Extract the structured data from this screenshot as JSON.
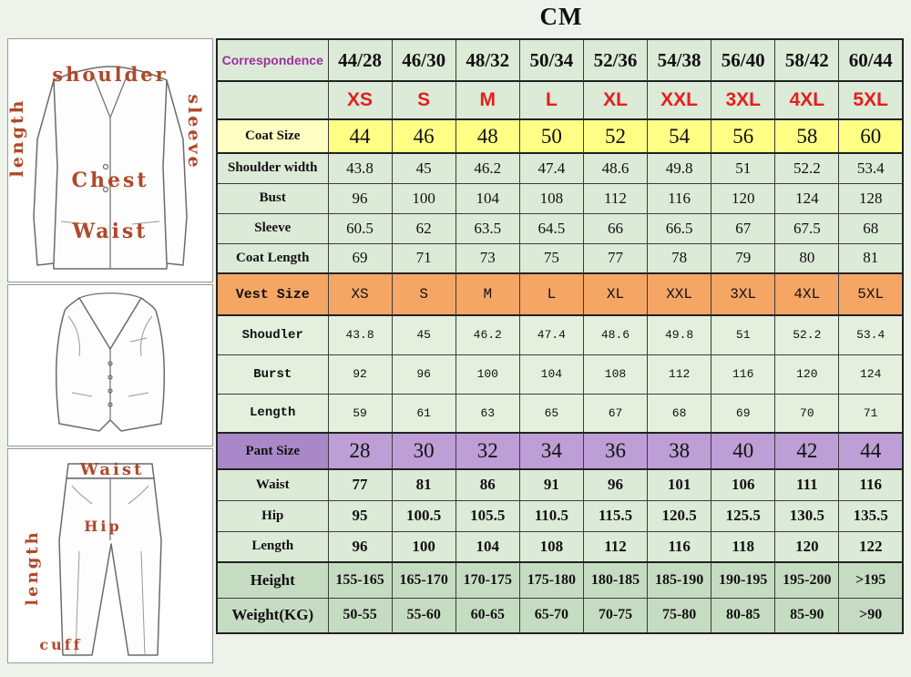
{
  "chart_data": {
    "type": "table",
    "title": "CM",
    "columns": [
      "Correspondence",
      "44/28",
      "46/30",
      "48/32",
      "50/34",
      "52/36",
      "54/38",
      "56/40",
      "58/42",
      "60/44"
    ],
    "rows": [
      {
        "label": "",
        "style": "size",
        "values": [
          "XS",
          "S",
          "M",
          "L",
          "XL",
          "XXL",
          "3XL",
          "4XL",
          "5XL"
        ]
      },
      {
        "label": "Coat Size",
        "style": "coat",
        "values": [
          "44",
          "46",
          "48",
          "50",
          "52",
          "54",
          "56",
          "58",
          "60"
        ]
      },
      {
        "label": "Shoulder width",
        "style": "coatm",
        "values": [
          "43.8",
          "45",
          "46.2",
          "47.4",
          "48.6",
          "49.8",
          "51",
          "52.2",
          "53.4"
        ]
      },
      {
        "label": "Bust",
        "style": "coatm",
        "values": [
          "96",
          "100",
          "104",
          "108",
          "112",
          "116",
          "120",
          "124",
          "128"
        ]
      },
      {
        "label": "Sleeve",
        "style": "coatm",
        "values": [
          "60.5",
          "62",
          "63.5",
          "64.5",
          "66",
          "66.5",
          "67",
          "67.5",
          "68"
        ]
      },
      {
        "label": "Coat Length",
        "style": "coatm",
        "values": [
          "69",
          "71",
          "73",
          "75",
          "77",
          "78",
          "79",
          "80",
          "81"
        ]
      },
      {
        "label": "Vest Size",
        "style": "vest",
        "values": [
          "XS",
          "S",
          "M",
          "L",
          "XL",
          "XXL",
          "3XL",
          "4XL",
          "5XL"
        ]
      },
      {
        "label": "Shoudler",
        "style": "vestm",
        "values": [
          "43.8",
          "45",
          "46.2",
          "47.4",
          "48.6",
          "49.8",
          "51",
          "52.2",
          "53.4"
        ]
      },
      {
        "label": "Burst",
        "style": "vestm",
        "values": [
          "92",
          "96",
          "100",
          "104",
          "108",
          "112",
          "116",
          "120",
          "124"
        ]
      },
      {
        "label": "Length",
        "style": "vestm",
        "values": [
          "59",
          "61",
          "63",
          "65",
          "67",
          "68",
          "69",
          "70",
          "71"
        ]
      },
      {
        "label": "Pant Size",
        "style": "pant",
        "values": [
          "28",
          "30",
          "32",
          "34",
          "36",
          "38",
          "40",
          "42",
          "44"
        ]
      },
      {
        "label": "Waist",
        "style": "pantm",
        "values": [
          "77",
          "81",
          "86",
          "91",
          "96",
          "101",
          "106",
          "111",
          "116"
        ]
      },
      {
        "label": "Hip",
        "style": "pantm",
        "values": [
          "95",
          "100.5",
          "105.5",
          "110.5",
          "115.5",
          "120.5",
          "125.5",
          "130.5",
          "135.5"
        ]
      },
      {
        "label": "Length",
        "style": "pantm",
        "values": [
          "96",
          "100",
          "104",
          "108",
          "112",
          "116",
          "118",
          "120",
          "122"
        ]
      },
      {
        "label": "Height",
        "style": "body",
        "values": [
          "155-165",
          "165-170",
          "170-175",
          "175-180",
          "180-185",
          "185-190",
          "190-195",
          "195-200",
          ">195"
        ]
      },
      {
        "label": "Weight(KG)",
        "style": "body",
        "values": [
          "50-55",
          "55-60",
          "60-65",
          "65-70",
          "70-75",
          "75-80",
          "80-85",
          "85-90",
          ">90"
        ]
      }
    ]
  },
  "diagrams": {
    "jacket": {
      "shoulder": "shoulder",
      "length": "length",
      "sleeve": "sleeve",
      "chest": "Chest",
      "waist": "Waist"
    },
    "pants": {
      "waist": "Waist",
      "length": "length",
      "hip": "Hip",
      "cuff": "cuff"
    }
  },
  "colors": {
    "page_background": "#edf2ea",
    "cell_green": "#dcead8",
    "coat_row_yellow": "#ffff85",
    "vest_row_orange": "#f5a665",
    "pant_row_purple": "#bd9ed6",
    "body_rows_green": "#c6dcc2",
    "size_text_red": "#e21f1f",
    "correspondence_magenta": "#9c2f9c",
    "diagram_label_red": "#b0482a"
  }
}
